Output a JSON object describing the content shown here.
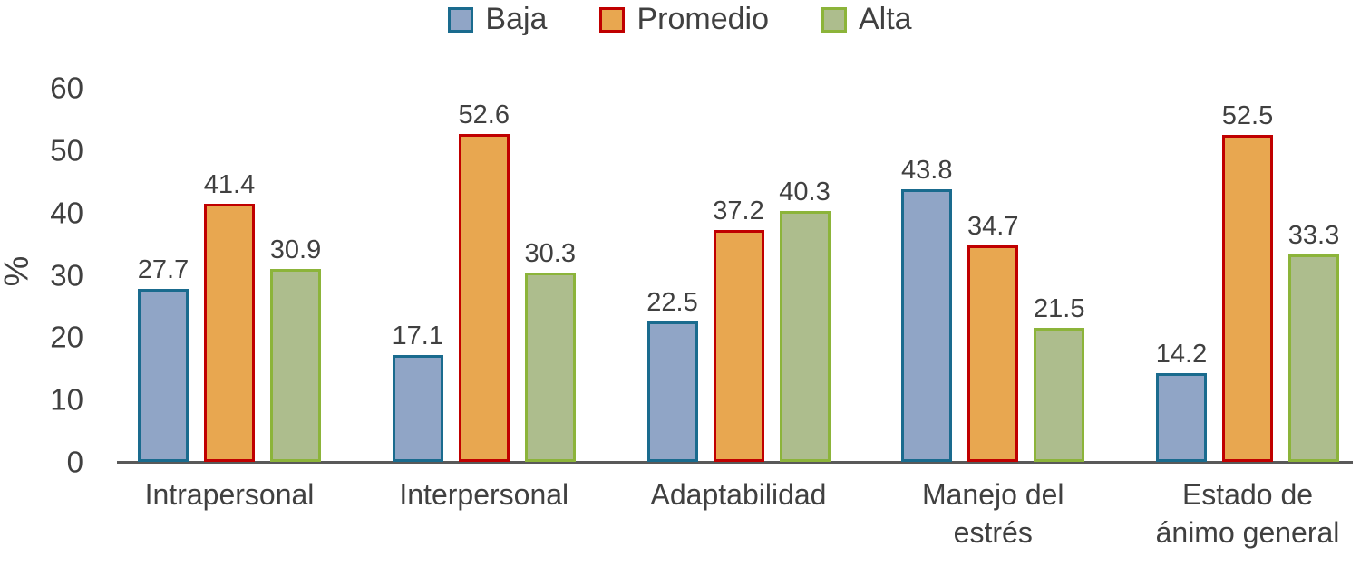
{
  "chart_data": {
    "type": "bar",
    "title": "",
    "xlabel": "",
    "ylabel": "%",
    "ylim": [
      0,
      60
    ],
    "yticks": [
      0,
      10,
      20,
      30,
      40,
      50,
      60
    ],
    "grid": false,
    "legend_position": "top",
    "categories": [
      "Intrapersonal",
      "Interpersonal",
      "Adaptabilidad",
      "Manejo del\nestrés",
      "Estado de\nánimo general"
    ],
    "series": [
      {
        "name": "Baja",
        "fill": "#90a5c6",
        "border": "#1a6b8e",
        "values": [
          27.7,
          17.1,
          22.5,
          43.8,
          14.2
        ]
      },
      {
        "name": "Promedio",
        "fill": "#e8a750",
        "border": "#c00000",
        "values": [
          41.4,
          52.6,
          37.2,
          34.7,
          52.5
        ]
      },
      {
        "name": "Alta",
        "fill": "#adbd8d",
        "border": "#8cb43a",
        "values": [
          30.9,
          30.3,
          40.3,
          21.5,
          33.3
        ]
      }
    ]
  },
  "colors": {
    "text": "#404040",
    "axis": "#595959",
    "background": "#ffffff"
  }
}
